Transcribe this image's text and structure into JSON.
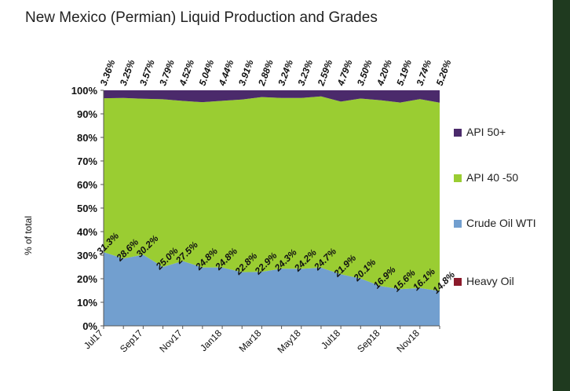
{
  "chart_data": {
    "type": "area",
    "stacked": true,
    "percent": true,
    "title": "New Mexico (Permian) Liquid Production and Grades",
    "ylabel": "% of total",
    "ylim": [
      0,
      100
    ],
    "yticks": [
      "0%",
      "10%",
      "20%",
      "30%",
      "40%",
      "50%",
      "60%",
      "70%",
      "80%",
      "90%",
      "100%"
    ],
    "categories": [
      "Jul17",
      "Aug17",
      "Sep17",
      "Oct17",
      "Nov17",
      "Dec17",
      "Jan18",
      "Feb18",
      "Mar18",
      "Apr18",
      "May18",
      "Jun18",
      "Jul18",
      "Aug18",
      "Sep18",
      "Oct18",
      "Nov18",
      "Dec18"
    ],
    "x_tick_labels": [
      "Jul17",
      "Sep17",
      "Nov17",
      "Jan18",
      "Mar18",
      "May18",
      "Jul18",
      "Sep18",
      "Nov18"
    ],
    "series": [
      {
        "name": "Heavy Oil",
        "color": "#8b1a2b",
        "values": [
          0,
          0,
          0,
          0,
          0,
          0,
          0,
          0,
          0,
          0,
          0,
          0,
          0,
          0,
          0,
          0,
          0,
          0
        ]
      },
      {
        "name": "Crude Oil WTI",
        "color": "#729fcf",
        "values": [
          31.3,
          28.6,
          30.2,
          25.0,
          27.5,
          24.8,
          24.8,
          22.8,
          22.9,
          24.3,
          24.2,
          24.7,
          21.9,
          20.1,
          16.9,
          15.6,
          16.1,
          14.8
        ]
      },
      {
        "name": "API 40 -50",
        "color": "#9acd32",
        "values": [
          65.34,
          68.15,
          66.23,
          71.21,
          67.98,
          70.16,
          70.76,
          73.29,
          74.22,
          72.46,
          72.57,
          72.71,
          73.31,
          76.4,
          78.9,
          79.21,
          80.16,
          79.94
        ]
      },
      {
        "name": "API 50+",
        "color": "#4b2a6b",
        "values": [
          3.36,
          3.25,
          3.57,
          3.79,
          4.52,
          5.04,
          4.44,
          3.91,
          2.88,
          3.24,
          3.23,
          2.59,
          4.79,
          3.5,
          4.2,
          5.19,
          3.74,
          5.26
        ]
      }
    ],
    "labels_api50": [
      "3.36%",
      "3.25%",
      "3.57%",
      "3.79%",
      "4.52%",
      "5.04%",
      "4.44%",
      "3.91%",
      "2.88%",
      "3.24%",
      "3.23%",
      "2.59%",
      "4.79%",
      "3.50%",
      "4.20%",
      "5.19%",
      "3.74%",
      "5.26%"
    ],
    "labels_wti": [
      "31.3%",
      "28.6%",
      "30.2%",
      "25.0%",
      "27.5%",
      "24.8%",
      "24.8%",
      "22.8%",
      "22.9%",
      "24.3%",
      "24.2%",
      "24.7%",
      "21.9%",
      "20.1%",
      "16.9%",
      "15.6%",
      "16.1%",
      "14.8%"
    ],
    "legend": {
      "placement": "right",
      "items": [
        {
          "label": "API 50+",
          "color": "#4b2a6b"
        },
        {
          "label": "API 40 -50",
          "color": "#9acd32"
        },
        {
          "label": "Crude Oil WTI",
          "color": "#729fcf"
        },
        {
          "label": "Heavy Oil",
          "color": "#8b1a2b"
        }
      ]
    }
  }
}
